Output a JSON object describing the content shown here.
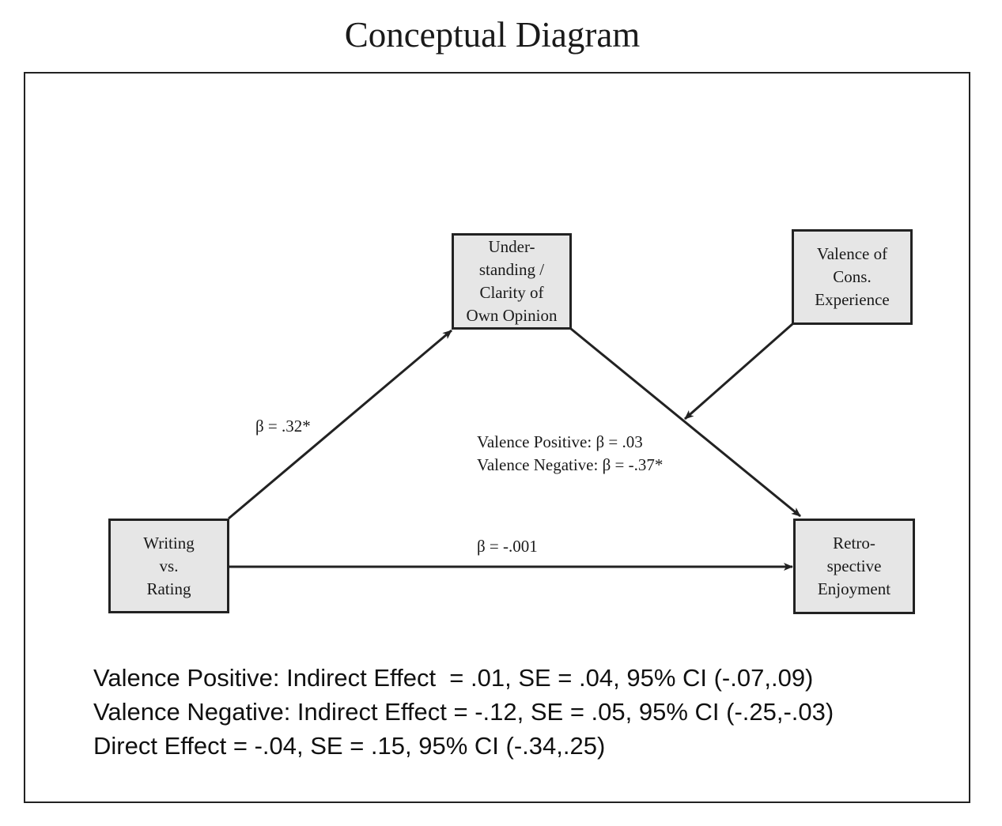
{
  "title": "Conceptual Diagram",
  "nodes": {
    "x": "Writing\nvs.\nRating",
    "mediator": "Under-\nstanding /\nClarity of\nOwn Opinion",
    "moderator": "Valence of\nCons.\nExperience",
    "y": "Retro-\nspective\nEnjoyment"
  },
  "paths": {
    "a_path": "β = .32*",
    "b_path_positive": "Valence Positive: β = .03",
    "b_path_negative": "Valence Negative: β = -.37*",
    "direct_path": "β = -.001"
  },
  "effects": {
    "positive": "Valence Positive: Indirect Effect  = .01, SE = .04, 95% CI (-.07,.09)",
    "negative": "Valence Negative: Indirect Effect = -.12, SE = .05, 95% CI (-.25,-.03)",
    "direct": "Direct Effect = -.04, SE = .15, 95% CI (-.34,.25)"
  },
  "colors": {
    "box_fill": "#e6e6e6",
    "stroke": "#222222"
  }
}
